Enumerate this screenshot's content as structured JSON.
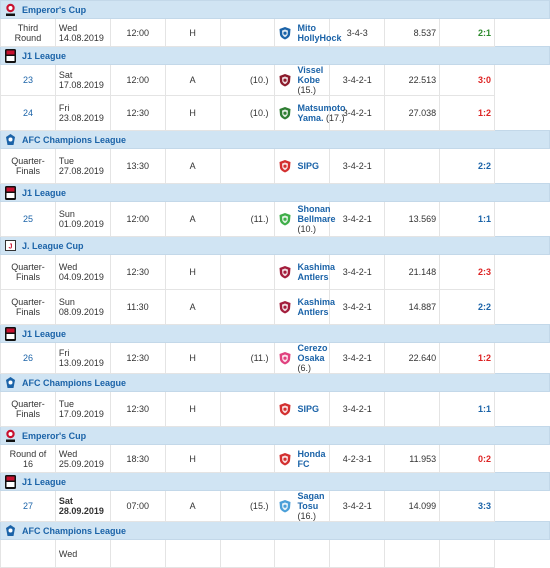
{
  "competitions": {
    "emperors_cup": {
      "name": "Emperor's Cup",
      "color": "#c8102e"
    },
    "j1": {
      "name": "J1 League",
      "color": "#c8102e"
    },
    "acl": {
      "name": "AFC Champions League",
      "color": "#1b63a8"
    },
    "jcup": {
      "name": "J. League Cup",
      "color": "#333333"
    }
  },
  "rows": [
    {
      "type": "comp",
      "key": "emperors_cup"
    },
    {
      "type": "match",
      "round": "Third Round",
      "round_link": false,
      "date": "Wed 14.08.2019",
      "time": "12:00",
      "venue": "H",
      "own_pos": "",
      "opponent": "Mito HollyHock",
      "opp_rank": "",
      "formation": "3-4-3",
      "attendance": "8.537",
      "result": "2:1",
      "outcome": "win",
      "crest": "crest-mito",
      "crest_color": "#1b63a8"
    },
    {
      "type": "comp",
      "key": "j1"
    },
    {
      "type": "match",
      "round": "23",
      "round_link": true,
      "date": "Sat 17.08.2019",
      "time": "12:00",
      "venue": "A",
      "own_pos": "(10.)",
      "opponent": "Vissel Kobe",
      "opp_rank": "(15.)",
      "formation": "3-4-2-1",
      "attendance": "22.513",
      "result": "3:0",
      "outcome": "loss",
      "crest": "crest-vissel",
      "crest_color": "#8b1a2b"
    },
    {
      "type": "match",
      "round": "24",
      "round_link": true,
      "date": "Fri 23.08.2019",
      "time": "12:30",
      "venue": "H",
      "own_pos": "(10.)",
      "opponent": "Matsumoto Yama.",
      "opp_rank": "(17.)",
      "formation": "3-4-2-1",
      "attendance": "27.038",
      "result": "1:2",
      "outcome": "loss",
      "crest": "crest-matsumoto",
      "crest_color": "#2e7d32",
      "tall": true
    },
    {
      "type": "comp",
      "key": "acl"
    },
    {
      "type": "match",
      "round": "Quarter-Finals",
      "round_link": false,
      "date": "Tue 27.08.2019",
      "time": "13:30",
      "venue": "A",
      "own_pos": "",
      "opponent": "SIPG",
      "opp_rank": "",
      "formation": "3-4-2-1",
      "attendance": "",
      "result": "2:2",
      "outcome": "draw",
      "crest": "crest-sipg",
      "crest_color": "#d32f2f",
      "tall": true
    },
    {
      "type": "comp",
      "key": "j1"
    },
    {
      "type": "match",
      "round": "25",
      "round_link": true,
      "date": "Sun 01.09.2019",
      "time": "12:00",
      "venue": "A",
      "own_pos": "(11.)",
      "opponent": "Shonan Bellmare",
      "opp_rank": "(10.)",
      "formation": "3-4-2-1",
      "attendance": "13.569",
      "result": "1:1",
      "outcome": "draw",
      "crest": "crest-shonan",
      "crest_color": "#3fae49",
      "tall": true
    },
    {
      "type": "comp",
      "key": "jcup"
    },
    {
      "type": "match",
      "round": "Quarter-Finals",
      "round_link": false,
      "date": "Wed 04.09.2019",
      "time": "12:30",
      "venue": "H",
      "own_pos": "",
      "opponent": "Kashima Antlers",
      "opp_rank": "",
      "formation": "3-4-2-1",
      "attendance": "21.148",
      "result": "2:3",
      "outcome": "loss",
      "crest": "crest-kashima",
      "crest_color": "#a31d3c",
      "tall": true
    },
    {
      "type": "match",
      "round": "Quarter-Finals",
      "round_link": false,
      "date": "Sun 08.09.2019",
      "time": "11:30",
      "venue": "A",
      "own_pos": "",
      "opponent": "Kashima Antlers",
      "opp_rank": "",
      "formation": "3-4-2-1",
      "attendance": "14.887",
      "result": "2:2",
      "outcome": "draw",
      "crest": "crest-kashima",
      "crest_color": "#a31d3c",
      "tall": true
    },
    {
      "type": "comp",
      "key": "j1"
    },
    {
      "type": "match",
      "round": "26",
      "round_link": true,
      "date": "Fri 13.09.2019",
      "time": "12:30",
      "venue": "H",
      "own_pos": "(11.)",
      "opponent": "Cerezo Osaka",
      "opp_rank": "(6.)",
      "formation": "3-4-2-1",
      "attendance": "22.640",
      "result": "1:2",
      "outcome": "loss",
      "crest": "crest-cerezo",
      "crest_color": "#e0427f"
    },
    {
      "type": "comp",
      "key": "acl"
    },
    {
      "type": "match",
      "round": "Quarter-Finals",
      "round_link": false,
      "date": "Tue 17.09.2019",
      "time": "12:30",
      "venue": "H",
      "own_pos": "",
      "opponent": "SIPG",
      "opp_rank": "",
      "formation": "3-4-2-1",
      "attendance": "",
      "result": "1:1",
      "outcome": "draw",
      "crest": "crest-sipg",
      "crest_color": "#d32f2f",
      "tall": true
    },
    {
      "type": "comp",
      "key": "emperors_cup"
    },
    {
      "type": "match",
      "round": "Round of 16",
      "round_link": false,
      "date": "Wed 25.09.2019",
      "time": "18:30",
      "venue": "H",
      "own_pos": "",
      "opponent": "Honda FC",
      "opp_rank": "",
      "formation": "4-2-3-1",
      "attendance": "11.953",
      "result": "0:2",
      "outcome": "loss",
      "crest": "crest-honda",
      "crest_color": "#d32f2f"
    },
    {
      "type": "comp",
      "key": "j1"
    },
    {
      "type": "match",
      "round": "27",
      "round_link": true,
      "date": "Sat 28.09.2019",
      "date_bold": true,
      "time": "07:00",
      "venue": "A",
      "own_pos": "(15.)",
      "opponent": "Sagan Tosu",
      "opp_rank": "(16.)",
      "formation": "3-4-2-1",
      "attendance": "14.099",
      "result": "3:3",
      "outcome": "draw",
      "crest": "crest-sagan",
      "crest_color": "#4a9fd8"
    },
    {
      "type": "comp",
      "key": "acl"
    },
    {
      "type": "match",
      "round": "",
      "round_link": false,
      "date": "Wed",
      "time": "",
      "venue": "",
      "own_pos": "",
      "opponent": "",
      "opp_rank": "",
      "formation": "",
      "attendance": "",
      "result": "",
      "outcome": "draw",
      "crest": "",
      "crest_color": "#d32f2f",
      "partial": true
    }
  ]
}
